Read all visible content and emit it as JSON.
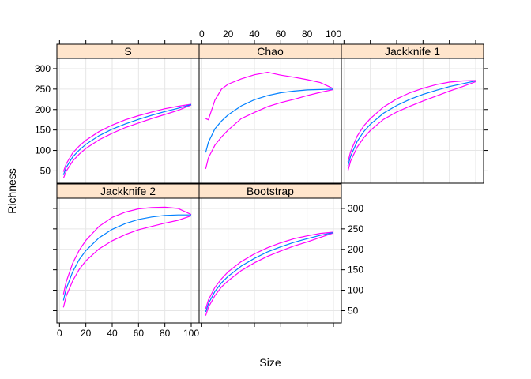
{
  "chart_data": {
    "type": "line",
    "xlabel": "Size",
    "ylabel": "Richness",
    "xlim": [
      -2,
      106
    ],
    "ylim": [
      20,
      325
    ],
    "x_ticks": [
      0,
      20,
      40,
      60,
      80,
      100
    ],
    "x_tick_labels": [
      "0",
      "20",
      "40",
      "60",
      "80",
      "100"
    ],
    "y_ticks": [
      50,
      100,
      150,
      200,
      250,
      300
    ],
    "y_tick_labels": [
      "50",
      "100",
      "150",
      "200",
      "250",
      "300"
    ],
    "grid": true,
    "layout": "lattice 3x2",
    "colors": {
      "strip_bg": "#ffe5cc",
      "mean_line": "#0080ff",
      "band_line": "#ff00ff",
      "grid": "#e6e6e6"
    },
    "panels": [
      {
        "strip": "S",
        "x": [
          3,
          5,
          10,
          15,
          20,
          30,
          40,
          50,
          60,
          70,
          80,
          90,
          100
        ],
        "mean": [
          40,
          58,
          84,
          101,
          115,
          136,
          152,
          165,
          176,
          186,
          195,
          203,
          212
        ],
        "upper": [
          48,
          67,
          94,
          111,
          125,
          146,
          162,
          175,
          185,
          194,
          202,
          208,
          213
        ],
        "lower": [
          32,
          49,
          74,
          91,
          105,
          126,
          142,
          156,
          167,
          178,
          188,
          198,
          211
        ]
      },
      {
        "strip": "Chao",
        "x": [
          3,
          5,
          10,
          15,
          20,
          30,
          40,
          50,
          60,
          70,
          80,
          90,
          100
        ],
        "mean": [
          95,
          120,
          153,
          172,
          187,
          209,
          224,
          234,
          241,
          245,
          248,
          249,
          250
        ],
        "upper": [
          178,
          175,
          223,
          250,
          262,
          275,
          285,
          291,
          284,
          279,
          273,
          266,
          251
        ],
        "lower": [
          55,
          82,
          113,
          133,
          150,
          178,
          193,
          207,
          217,
          225,
          234,
          242,
          249
        ]
      },
      {
        "strip": "Jackknife 1",
        "x": [
          3,
          5,
          10,
          15,
          20,
          30,
          40,
          50,
          60,
          70,
          80,
          90,
          100
        ],
        "mean": [
          62,
          86,
          122,
          146,
          164,
          191,
          210,
          225,
          237,
          247,
          256,
          263,
          270
        ],
        "upper": [
          72,
          97,
          135,
          160,
          178,
          206,
          226,
          241,
          252,
          261,
          267,
          270,
          271
        ],
        "lower": [
          50,
          74,
          108,
          131,
          149,
          176,
          194,
          208,
          221,
          233,
          245,
          256,
          268
        ]
      },
      {
        "strip": "Jackknife 2",
        "x": [
          3,
          5,
          10,
          15,
          20,
          30,
          40,
          50,
          60,
          70,
          80,
          90,
          100
        ],
        "mean": [
          75,
          103,
          145,
          175,
          197,
          228,
          249,
          263,
          273,
          279,
          283,
          284,
          284
        ],
        "upper": [
          90,
          120,
          166,
          198,
          222,
          256,
          278,
          291,
          299,
          302,
          303,
          300,
          285
        ],
        "lower": [
          58,
          85,
          123,
          151,
          172,
          201,
          221,
          236,
          248,
          256,
          264,
          271,
          282
        ]
      },
      {
        "strip": "Bootstrap",
        "x": [
          3,
          5,
          10,
          15,
          20,
          30,
          40,
          50,
          60,
          70,
          80,
          90,
          100
        ],
        "mean": [
          47,
          67,
          97,
          118,
          134,
          159,
          178,
          194,
          206,
          217,
          226,
          234,
          241
        ],
        "upper": [
          55,
          76,
          107,
          128,
          145,
          170,
          189,
          204,
          216,
          226,
          233,
          239,
          242
        ],
        "lower": [
          38,
          58,
          87,
          108,
          123,
          148,
          167,
          183,
          196,
          208,
          218,
          229,
          240
        ]
      }
    ]
  }
}
